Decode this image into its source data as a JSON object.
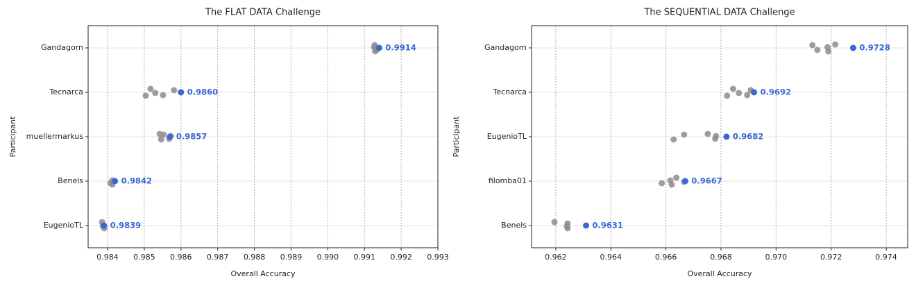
{
  "chart_data": [
    {
      "type": "strip",
      "title": "The FLAT DATA Challenge",
      "x_label": "Overall Accuracy",
      "y_label": "Participant",
      "categories": [
        "Gandagorn",
        "Tecnarca",
        "muellermarkus",
        "Benels",
        "EugenioTL"
      ],
      "runs": [
        [
          0.99128,
          0.99133,
          0.99126,
          0.99129
        ],
        [
          0.98504,
          0.98517,
          0.9853,
          0.98551,
          0.98581
        ],
        [
          0.98546,
          0.98553,
          0.98542,
          0.98568,
          0.98572
        ],
        [
          0.98408,
          0.98413,
          0.98413
        ],
        [
          0.98385,
          0.98387,
          0.98391
        ]
      ],
      "runs_color": "#8c8c8c",
      "best": [
        0.9914,
        0.986,
        0.9857,
        0.9842,
        0.9839
      ],
      "value_labels": [
        "0.9914",
        "0.9860",
        "0.9857",
        "0.9842",
        "0.9839"
      ],
      "best_color": "#3a66d6",
      "xlim": [
        0.98347,
        0.993
      ],
      "xticks": [
        0.984,
        0.985,
        0.986,
        0.987,
        0.988,
        0.989,
        {
          "value": 0.99,
          "label": "0.990"
        },
        0.991,
        0.992,
        0.993
      ],
      "grid": true
    },
    {
      "type": "strip",
      "title": "The SEQUENTIAL DATA Challenge",
      "x_label": "Overall Accuracy",
      "y_label": "Participant",
      "categories": [
        "Gandagorn",
        "Tecnarca",
        "EugenioTL",
        "filomba01",
        "Benels"
      ],
      "runs": [
        [
          0.97132,
          0.9715,
          0.97187,
          0.9719,
          0.97215
        ],
        [
          0.96822,
          0.96844,
          0.96865,
          0.96895,
          0.96908
        ],
        [
          0.96628,
          0.96666,
          0.96752,
          0.96779,
          0.96782
        ],
        [
          0.96585,
          0.96616,
          0.96621,
          0.96638,
          0.96666
        ],
        [
          0.96195,
          0.9624,
          0.96243,
          0.96243
        ]
      ],
      "runs_color": "#8c8c8c",
      "best": [
        0.9728,
        0.9692,
        0.9682,
        0.9667,
        0.9631
      ],
      "value_labels": [
        "0.9728",
        "0.9692",
        "0.9682",
        "0.9667",
        "0.9631"
      ],
      "best_color": "#3a66d6",
      "xlim": [
        0.96112,
        0.97478
      ],
      "xticks": [
        0.962,
        0.964,
        0.966,
        0.968,
        {
          "value": 0.97,
          "label": "0.970"
        },
        0.972,
        0.974
      ],
      "grid": true
    }
  ]
}
